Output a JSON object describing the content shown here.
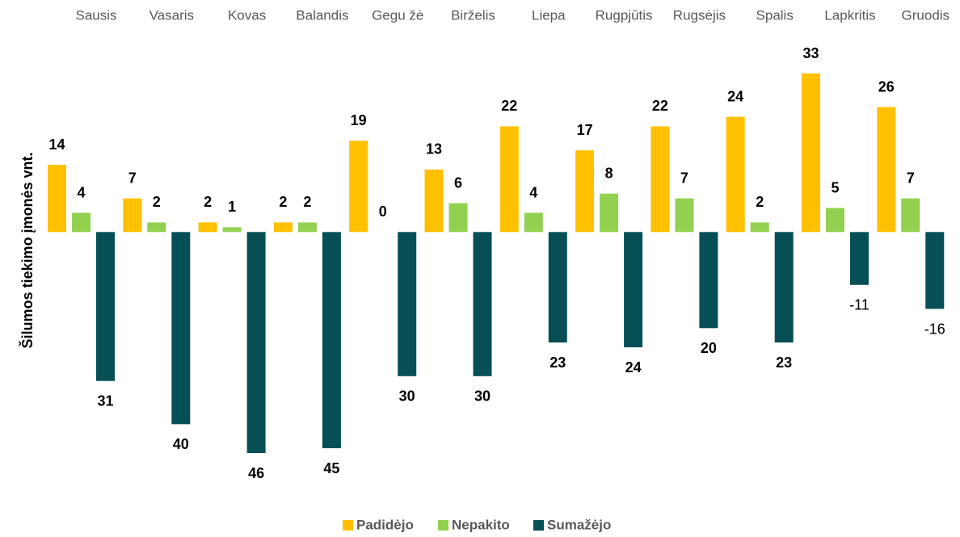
{
  "chart_data": {
    "type": "bar",
    "ylabel": "Šilumos tiekimo įmonės vnt.",
    "categories": [
      "Sausis",
      "Vasaris",
      "Kovas",
      "Balandis",
      "Gegu žė",
      "Birželis",
      "Liepa",
      "Rugpjūtis",
      "Rugsėjis",
      "Spalis",
      "Lapkritis",
      "Gruodis"
    ],
    "series": [
      {
        "name": "Padidėjo",
        "color": "#FFC000",
        "values": [
          14,
          7,
          2,
          2,
          19,
          13,
          22,
          17,
          22,
          24,
          33,
          26
        ]
      },
      {
        "name": "Nepakito",
        "color": "#92D050",
        "values": [
          4,
          2,
          1,
          2,
          0,
          6,
          4,
          8,
          7,
          2,
          5,
          7
        ]
      },
      {
        "name": "Sumažėjo",
        "color": "#064F55",
        "values": [
          -31,
          -40,
          -46,
          -45,
          -30,
          -30,
          -23,
          -24,
          -20,
          -23,
          -11,
          -16
        ],
        "value_labels": [
          "31",
          "40",
          "46",
          "45",
          "30",
          "30",
          "23",
          "24",
          "20",
          "23",
          "-11",
          "-16"
        ]
      }
    ],
    "legend": "bottom"
  }
}
